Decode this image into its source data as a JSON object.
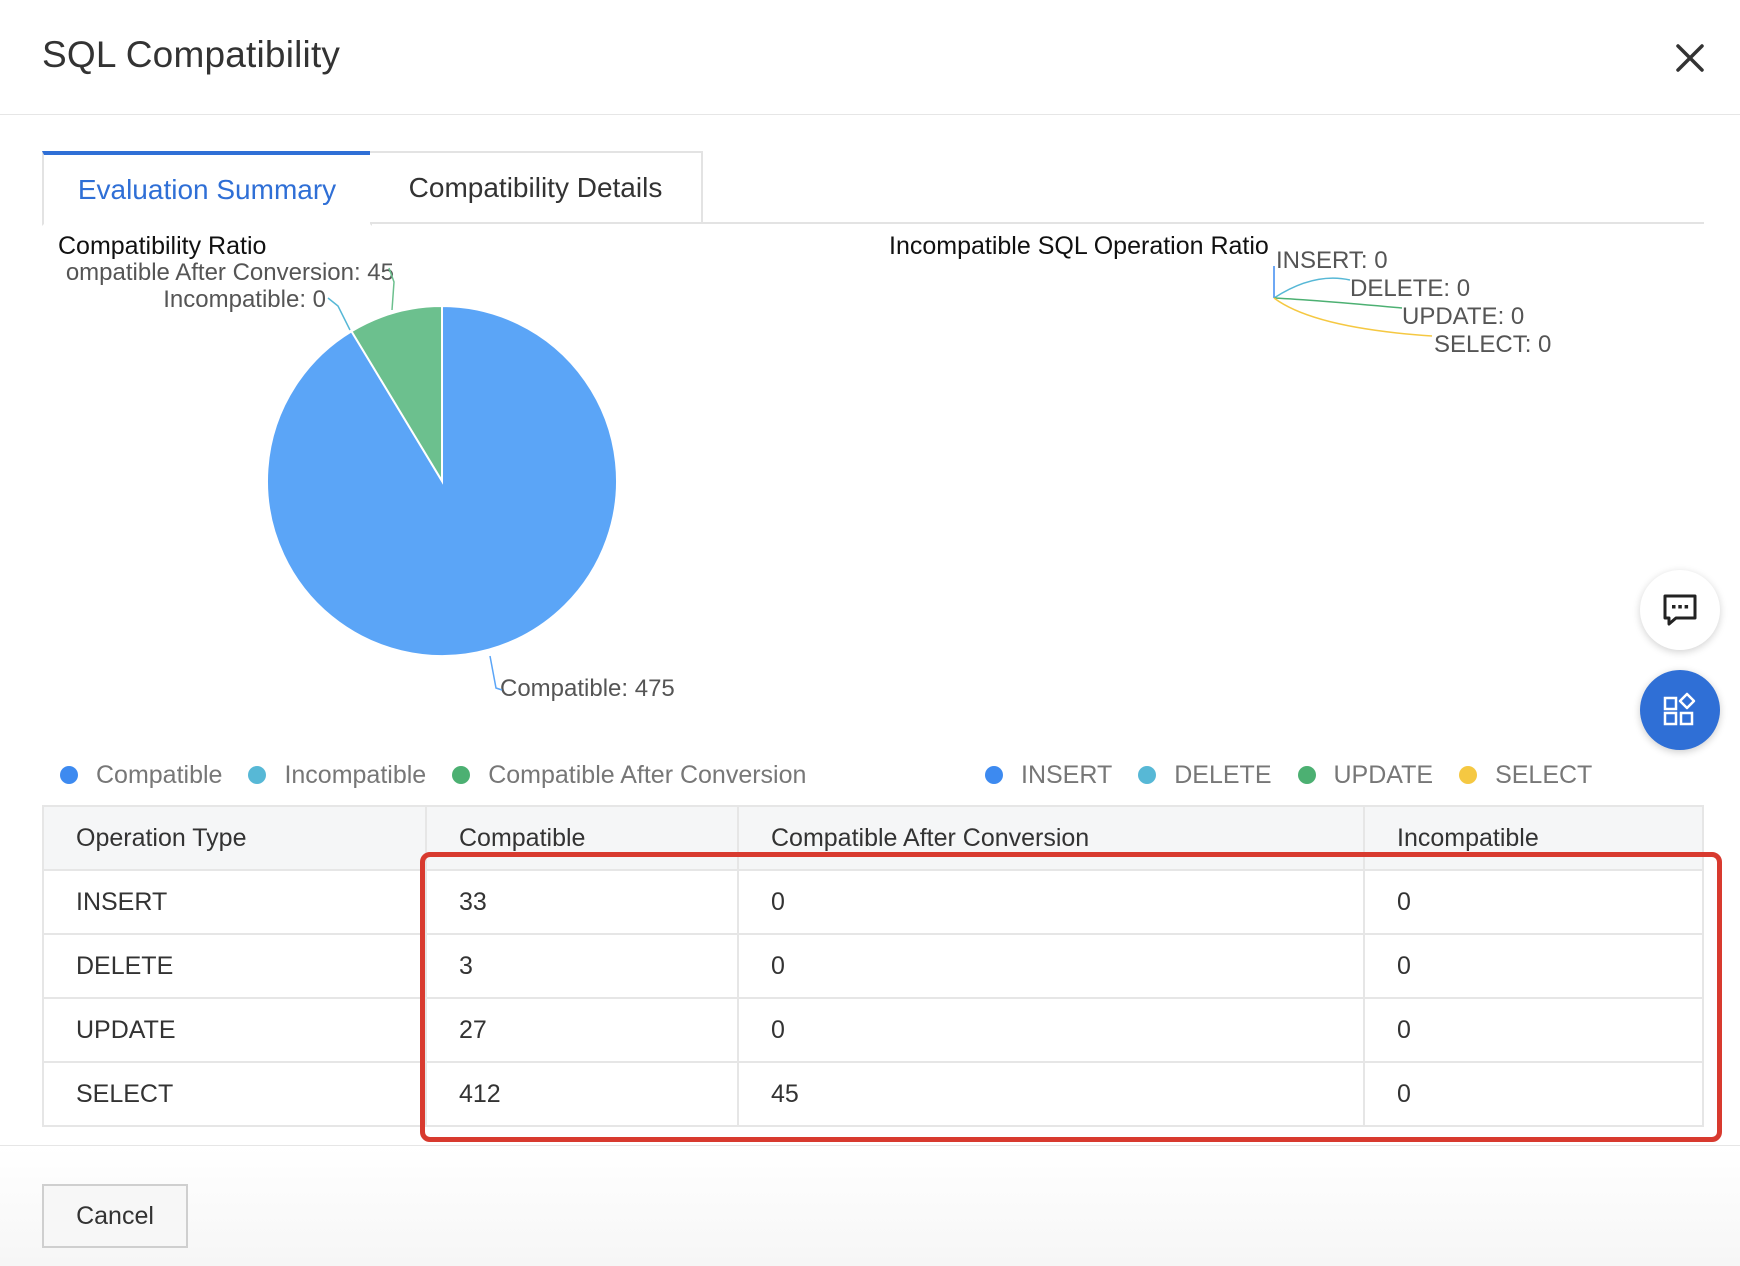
{
  "dialog": {
    "title": "SQL Compatibility"
  },
  "tabs": [
    {
      "label": "Evaluation Summary",
      "active": true
    },
    {
      "label": "Compatibility Details",
      "active": false
    }
  ],
  "icons": {
    "close": "close-icon",
    "chat": "chat-icon",
    "apps": "apps-icon"
  },
  "chart_data": [
    {
      "type": "pie",
      "title": "Compatibility Ratio",
      "slices": [
        {
          "name": "Compatible",
          "value": 475,
          "color": "#5ba5f7",
          "label": "Compatible: 475"
        },
        {
          "name": "Incompatible",
          "value": 0,
          "color": "#57b8d6",
          "label": "Incompatible: 0"
        },
        {
          "name": "Compatible After Conversion",
          "value": 45,
          "color": "#6cc08e",
          "label": "ompatible After Conversion: 45"
        }
      ],
      "legend": [
        "Compatible",
        "Incompatible",
        "Compatible After Conversion"
      ],
      "legend_colors": [
        "#3d8af0",
        "#57b8d6",
        "#4cb072"
      ],
      "legend_position": "bottom-left"
    },
    {
      "type": "pie",
      "title": "Incompatible SQL Operation Ratio",
      "slices": [
        {
          "name": "INSERT",
          "value": 0,
          "color": "#3d8af0",
          "label": "INSERT: 0"
        },
        {
          "name": "DELETE",
          "value": 0,
          "color": "#57b8d6",
          "label": "DELETE: 0"
        },
        {
          "name": "UPDATE",
          "value": 0,
          "color": "#4cb072",
          "label": "UPDATE: 0"
        },
        {
          "name": "SELECT",
          "value": 0,
          "color": "#f5c842",
          "label": "SELECT: 0"
        }
      ],
      "legend": [
        "INSERT",
        "DELETE",
        "UPDATE",
        "SELECT"
      ],
      "legend_colors": [
        "#3d8af0",
        "#57b8d6",
        "#4cb072",
        "#f5c842"
      ],
      "legend_position": "bottom-right"
    }
  ],
  "table": {
    "headers": [
      "Operation Type",
      "Compatible",
      "Compatible After Conversion",
      "Incompatible"
    ],
    "rows": [
      [
        "INSERT",
        "33",
        "0",
        "0"
      ],
      [
        "DELETE",
        "3",
        "0",
        "0"
      ],
      [
        "UPDATE",
        "27",
        "0",
        "0"
      ],
      [
        "SELECT",
        "412",
        "45",
        "0"
      ]
    ]
  },
  "footer": {
    "cancel_label": "Cancel"
  },
  "colors": {
    "accent": "#2f6fd6",
    "highlight": "#d83a2f"
  }
}
